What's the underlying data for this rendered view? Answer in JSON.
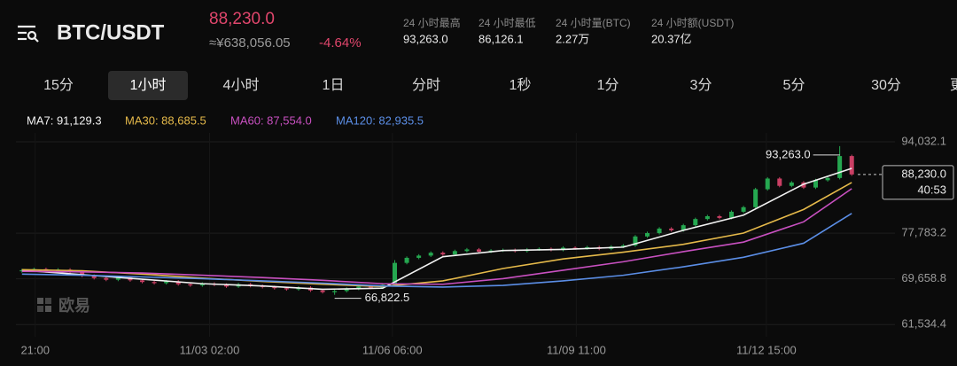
{
  "header": {
    "pair": "BTC/USDT",
    "price": "88,230.0",
    "cny": "≈¥638,056.05",
    "change": "-4.64%",
    "stats": [
      {
        "label": "24 小时最高",
        "value": "93,263.0"
      },
      {
        "label": "24 小时最低",
        "value": "86,126.1"
      },
      {
        "label": "24 小时量(BTC)",
        "value": "2.27万"
      },
      {
        "label": "24 小时额(USDT)",
        "value": "20.37亿"
      }
    ]
  },
  "tabs": [
    "15分",
    "1小时",
    "4小时",
    "1日",
    "分时",
    "1秒",
    "1分",
    "3分",
    "5分",
    "30分",
    "更"
  ],
  "active_tab": 1,
  "watermark": "欧易",
  "chart_data": {
    "type": "candlestick",
    "up_color": "#25a750",
    "down_color": "#ca3f64",
    "xlim": [
      -0.5,
      69.5
    ],
    "ylim": [
      57000,
      96400
    ],
    "xticks": [
      {
        "value": 1.1,
        "label": "21:00"
      },
      {
        "value": 15.6,
        "label": "11/03 02:00"
      },
      {
        "value": 30.8,
        "label": "11/06 06:00"
      },
      {
        "value": 46.1,
        "label": "11/09 11:00"
      },
      {
        "value": 61.9,
        "label": "11/12 15:00"
      }
    ],
    "yticks": [
      {
        "value": 94032.1,
        "label": "94,032.1"
      },
      {
        "value": 77783.2,
        "label": "77,783.2"
      },
      {
        "value": 69658.8,
        "label": "69,658.8"
      },
      {
        "value": 61534.4,
        "label": "61,534.4"
      }
    ],
    "ohlc": [
      [
        71000,
        71450,
        70750,
        71200
      ],
      [
        71200,
        71650,
        70950,
        71400
      ],
      [
        71400,
        71650,
        70750,
        71000
      ],
      [
        71000,
        71550,
        70750,
        71300
      ],
      [
        71300,
        71550,
        70550,
        70800
      ],
      [
        70800,
        71050,
        69950,
        70200
      ],
      [
        70200,
        70450,
        69550,
        69800
      ],
      [
        69800,
        70050,
        69250,
        69500
      ],
      [
        69500,
        70150,
        69250,
        69900
      ],
      [
        69900,
        70150,
        69150,
        69400
      ],
      [
        69400,
        69650,
        68850,
        69100
      ],
      [
        69100,
        69350,
        68650,
        68900
      ],
      [
        68900,
        69450,
        68650,
        69200
      ],
      [
        69200,
        69450,
        68450,
        68700
      ],
      [
        68700,
        68950,
        68250,
        68500
      ],
      [
        68500,
        69050,
        68250,
        68800
      ],
      [
        68800,
        69050,
        68350,
        68600
      ],
      [
        68600,
        68850,
        68050,
        68300
      ],
      [
        68300,
        68950,
        68050,
        68700
      ],
      [
        68700,
        68950,
        68150,
        68400
      ],
      [
        68400,
        68650,
        67950,
        68200
      ],
      [
        68200,
        68450,
        67750,
        68000
      ],
      [
        68000,
        68250,
        67550,
        67800
      ],
      [
        67800,
        68350,
        67550,
        68100
      ],
      [
        68100,
        68350,
        67350,
        67600
      ],
      [
        67600,
        67850,
        67050,
        67300
      ],
      [
        67300,
        67750,
        66822.5,
        67500
      ],
      [
        67500,
        68150,
        67250,
        67900
      ],
      [
        67900,
        68550,
        67650,
        68300
      ],
      [
        68300,
        68550,
        67850,
        68100
      ],
      [
        68100,
        68850,
        67850,
        68600
      ],
      [
        68600,
        73000,
        68350,
        72500
      ],
      [
        72500,
        73650,
        72250,
        73400
      ],
      [
        73400,
        74050,
        73150,
        73800
      ],
      [
        73800,
        74550,
        73550,
        74300
      ],
      [
        74300,
        74550,
        73750,
        74000
      ],
      [
        74000,
        74850,
        73750,
        74600
      ],
      [
        74600,
        75150,
        74350,
        74900
      ],
      [
        74900,
        75150,
        74250,
        74500
      ],
      [
        74500,
        74950,
        74250,
        74700
      ],
      [
        74700,
        75050,
        74450,
        74800
      ],
      [
        74800,
        75050,
        74350,
        74600
      ],
      [
        74600,
        75150,
        74350,
        74900
      ],
      [
        74900,
        75250,
        74650,
        75000
      ],
      [
        75000,
        75250,
        74550,
        74800
      ],
      [
        74800,
        75450,
        74550,
        75200
      ],
      [
        75200,
        75450,
        74850,
        75100
      ],
      [
        75100,
        75550,
        74850,
        75300
      ],
      [
        75300,
        75550,
        74750,
        75000
      ],
      [
        75000,
        75650,
        74750,
        75400
      ],
      [
        75400,
        75850,
        75150,
        75600
      ],
      [
        75600,
        77450,
        75350,
        77200
      ],
      [
        77200,
        78050,
        76950,
        77800
      ],
      [
        77800,
        78850,
        77550,
        78600
      ],
      [
        78600,
        78850,
        78050,
        78300
      ],
      [
        78300,
        79450,
        78050,
        79200
      ],
      [
        79200,
        80550,
        78950,
        80300
      ],
      [
        80300,
        81050,
        80050,
        80800
      ],
      [
        80800,
        81050,
        80250,
        80500
      ],
      [
        80500,
        81850,
        80250,
        81600
      ],
      [
        81600,
        82650,
        81350,
        82400
      ],
      [
        82400,
        85850,
        82150,
        85600
      ],
      [
        85600,
        87750,
        85350,
        87500
      ],
      [
        87500,
        87750,
        85950,
        86200
      ],
      [
        86200,
        87050,
        85950,
        86800
      ],
      [
        86800,
        87050,
        85650,
        85900
      ],
      [
        85900,
        87450,
        85650,
        87200
      ],
      [
        87200,
        87850,
        86950,
        87600
      ],
      [
        87600,
        93263,
        87350,
        91500
      ],
      [
        91500,
        91750,
        87980,
        88230
      ]
    ],
    "series": [
      {
        "legend": "MA7: 91,129.3",
        "color": "#f2f2f2",
        "x": [
          0,
          5,
          10,
          15,
          20,
          25,
          30,
          35,
          40,
          45,
          50,
          55,
          60,
          65,
          69
        ],
        "values": [
          71200,
          70400,
          69600,
          68800,
          68400,
          67800,
          68000,
          73600,
          74700,
          74900,
          75300,
          78300,
          81000,
          86500,
          89300
        ]
      },
      {
        "legend": "MA30: 88,685.5",
        "color": "#e5b94a",
        "x": [
          0,
          5,
          10,
          15,
          20,
          25,
          30,
          35,
          40,
          45,
          50,
          55,
          60,
          65,
          69
        ],
        "values": [
          71300,
          71100,
          70500,
          69800,
          69200,
          68700,
          68300,
          69300,
          71500,
          73200,
          74400,
          75800,
          77800,
          82000,
          86800
        ]
      },
      {
        "legend": "MA60: 87,554.0",
        "color": "#c850c0",
        "x": [
          0,
          5,
          10,
          15,
          20,
          25,
          30,
          35,
          40,
          45,
          50,
          55,
          60,
          65,
          69
        ],
        "values": [
          71000,
          70900,
          70700,
          70300,
          69900,
          69400,
          68800,
          68700,
          69700,
          71200,
          72700,
          74500,
          76200,
          79800,
          85700
        ]
      },
      {
        "legend": "MA120: 82,935.5",
        "color": "#5b8ee6",
        "x": [
          0,
          5,
          10,
          15,
          20,
          25,
          30,
          35,
          40,
          45,
          50,
          55,
          60,
          65,
          69
        ],
        "values": [
          70500,
          70300,
          70000,
          69700,
          69300,
          68900,
          68400,
          68200,
          68500,
          69300,
          70300,
          71800,
          73500,
          76000,
          81300
        ]
      }
    ],
    "annotations": [
      {
        "value": 93263,
        "label": "93,263.0"
      },
      {
        "value": 66822.5,
        "label": "66,822.5"
      }
    ],
    "last": {
      "value": 88230,
      "label": "88,230.0",
      "countdown": "40:53"
    }
  }
}
